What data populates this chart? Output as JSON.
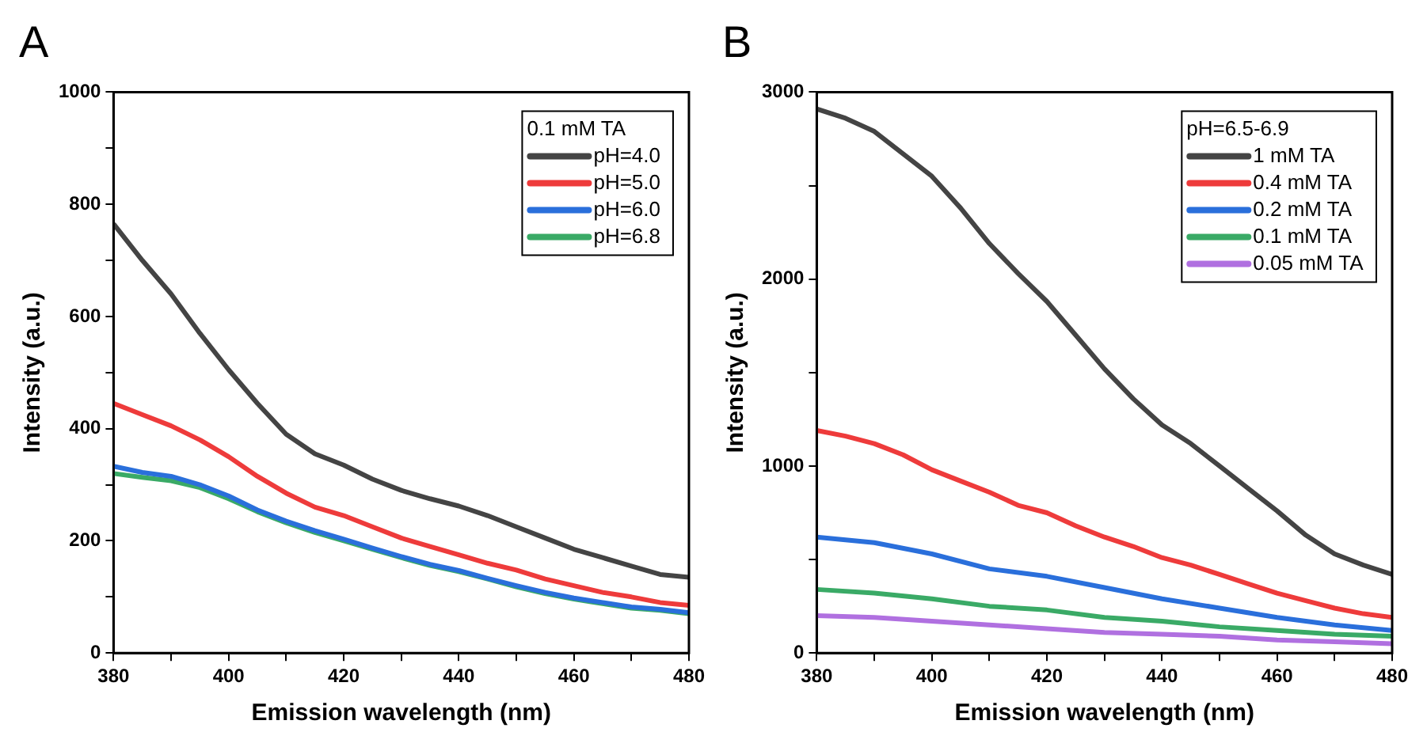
{
  "chart_data": [
    {
      "type": "line",
      "annotations": [
        "A"
      ],
      "xlabel": "Emission wavelength (nm)",
      "ylabel": "Intensity (a.u.)",
      "legend_title": "0.1 mM TA",
      "legend": "top right",
      "grid": false,
      "marker": "none",
      "line_style": "solid",
      "x": [
        380,
        385,
        390,
        395,
        400,
        405,
        410,
        415,
        420,
        425,
        430,
        435,
        440,
        445,
        450,
        455,
        460,
        465,
        470,
        475,
        480
      ],
      "xlim": [
        380,
        480
      ],
      "xticks": [
        380,
        {
          "value": 390,
          "label": null
        },
        400,
        {
          "value": 410,
          "label": null
        },
        420,
        {
          "value": 430,
          "label": null
        },
        440,
        {
          "value": 450,
          "label": null
        },
        460,
        {
          "value": 470,
          "label": null
        },
        480
      ],
      "ylim": [
        0,
        1000
      ],
      "yticks": [
        0,
        {
          "value": 100,
          "label": null
        },
        200,
        {
          "value": 300,
          "label": null
        },
        400,
        {
          "value": 500,
          "label": null
        },
        600,
        {
          "value": 700,
          "label": null
        },
        800,
        {
          "value": 900,
          "label": null
        },
        1000
      ],
      "series": [
        {
          "name": "pH=4.0",
          "color": "#444444",
          "values": [
            765,
            700,
            640,
            570,
            505,
            445,
            390,
            355,
            335,
            310,
            290,
            275,
            262,
            245,
            225,
            205,
            185,
            170,
            155,
            140,
            135
          ]
        },
        {
          "name": "pH=5.0",
          "color": "#ee3b3b",
          "values": [
            445,
            425,
            405,
            380,
            350,
            315,
            285,
            260,
            245,
            225,
            205,
            190,
            175,
            160,
            148,
            132,
            120,
            108,
            100,
            90,
            85
          ]
        },
        {
          "name": "pH=6.0",
          "color": "#2a6fdb",
          "values": [
            333,
            322,
            315,
            300,
            280,
            255,
            235,
            218,
            203,
            187,
            172,
            158,
            147,
            133,
            120,
            108,
            98,
            90,
            82,
            78,
            72
          ]
        },
        {
          "name": "pH=6.8",
          "color": "#3aaa66",
          "values": [
            320,
            313,
            307,
            295,
            275,
            252,
            232,
            215,
            200,
            185,
            170,
            156,
            145,
            132,
            118,
            106,
            96,
            88,
            80,
            76,
            70
          ]
        }
      ]
    },
    {
      "type": "line",
      "annotations": [
        "B"
      ],
      "xlabel": "Emission wavelength (nm)",
      "ylabel": "Intensity (a.u.)",
      "legend_title": "pH=6.5-6.9",
      "legend": "top right",
      "grid": false,
      "marker": "none",
      "line_style": "solid",
      "x": [
        380,
        385,
        390,
        395,
        400,
        405,
        410,
        415,
        420,
        425,
        430,
        435,
        440,
        445,
        450,
        455,
        460,
        465,
        470,
        475,
        480
      ],
      "xlim": [
        380,
        480
      ],
      "xticks": [
        380,
        {
          "value": 390,
          "label": null
        },
        400,
        {
          "value": 410,
          "label": null
        },
        420,
        {
          "value": 430,
          "label": null
        },
        440,
        {
          "value": 450,
          "label": null
        },
        460,
        {
          "value": 470,
          "label": null
        },
        480
      ],
      "ylim": [
        0,
        3000
      ],
      "yticks": [
        0,
        {
          "value": 500,
          "label": null
        },
        1000,
        {
          "value": 1500,
          "label": null
        },
        2000,
        {
          "value": 2500,
          "label": null
        },
        3000
      ],
      "series": [
        {
          "name": "1 mM TA",
          "color": "#444444",
          "values": [
            2910,
            2860,
            2790,
            2670,
            2550,
            2380,
            2190,
            2030,
            1880,
            1700,
            1520,
            1360,
            1220,
            1120,
            1000,
            880,
            760,
            630,
            530,
            470,
            420
          ]
        },
        {
          "name": "0.4 mM TA",
          "color": "#ee3b3b",
          "values": [
            1190,
            1160,
            1120,
            1060,
            980,
            920,
            860,
            790,
            750,
            680,
            620,
            570,
            510,
            470,
            420,
            370,
            320,
            280,
            240,
            210,
            190
          ]
        },
        {
          "name": "0.2 mM TA",
          "color": "#2a6fdb",
          "x": [
            380,
            390,
            400,
            410,
            420,
            430,
            440,
            450,
            460,
            470,
            480
          ],
          "values": [
            620,
            590,
            530,
            450,
            410,
            350,
            290,
            240,
            190,
            150,
            120
          ]
        },
        {
          "name": "0.1 mM TA",
          "color": "#3aaa66",
          "x": [
            380,
            390,
            400,
            410,
            420,
            430,
            440,
            450,
            460,
            470,
            480
          ],
          "values": [
            340,
            320,
            290,
            250,
            230,
            190,
            170,
            140,
            120,
            100,
            90
          ]
        },
        {
          "name": "0.05 mM TA",
          "color": "#b070e0",
          "x": [
            380,
            390,
            400,
            410,
            420,
            430,
            440,
            450,
            460,
            470,
            480
          ],
          "values": [
            200,
            190,
            170,
            150,
            130,
            110,
            100,
            90,
            70,
            60,
            50
          ]
        }
      ]
    }
  ]
}
